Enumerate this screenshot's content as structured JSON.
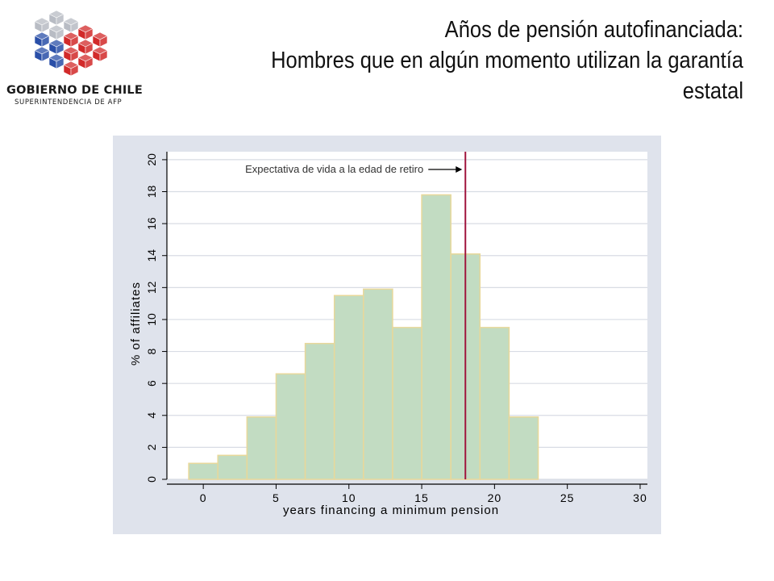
{
  "header": {
    "title_line1": "Años de pensión autofinanciada:",
    "title_line2": "Hombres que en algún momento utilizan la garantía",
    "title_line3": "estatal"
  },
  "logo": {
    "name": "GOBIERNO DE CHILE",
    "subtitle": "SUPERINTENDENCIA DE AFP",
    "colors": {
      "blue": "#2a4fa8",
      "red": "#d22a2a",
      "silver": "#b8bcc4"
    }
  },
  "chart_data": {
    "type": "bar",
    "subtype": "histogram",
    "bin_width": 2,
    "bins": [
      {
        "from": -1,
        "to": 1,
        "value": 1.0
      },
      {
        "from": 1,
        "to": 3,
        "value": 1.5
      },
      {
        "from": 3,
        "to": 5,
        "value": 3.9
      },
      {
        "from": 5,
        "to": 7,
        "value": 6.6
      },
      {
        "from": 7,
        "to": 9,
        "value": 8.5
      },
      {
        "from": 9,
        "to": 11,
        "value": 11.5
      },
      {
        "from": 11,
        "to": 13,
        "value": 11.9
      },
      {
        "from": 13,
        "to": 15,
        "value": 9.5
      },
      {
        "from": 15,
        "to": 17,
        "value": 17.8
      },
      {
        "from": 17,
        "to": 19,
        "value": 14.1
      },
      {
        "from": 19,
        "to": 21,
        "value": 9.5
      },
      {
        "from": 21,
        "to": 23,
        "value": 3.9
      }
    ],
    "xlabel": "years financing a minimum pension",
    "ylabel": "% of affiliates",
    "xlim": [
      -2.5,
      30.5
    ],
    "ylim": [
      0,
      20.5
    ],
    "xticks": [
      "0",
      "5",
      "10",
      "15",
      "20",
      "25",
      "30"
    ],
    "yticks": [
      "0",
      "2",
      "4",
      "6",
      "8",
      "10",
      "12",
      "14",
      "16",
      "18",
      "20"
    ],
    "grid": "horizontal",
    "reference_line": {
      "x": 18,
      "label": "Expectativa de vida a la edad de retiro",
      "color": "#a0153e"
    },
    "colors": {
      "bar_fill": "#c2dcc2",
      "bar_edge": "#e8d89a",
      "plot_bg": "#ffffff",
      "panel_bg": "#dfe3ec",
      "grid": "#d8dce4"
    }
  }
}
